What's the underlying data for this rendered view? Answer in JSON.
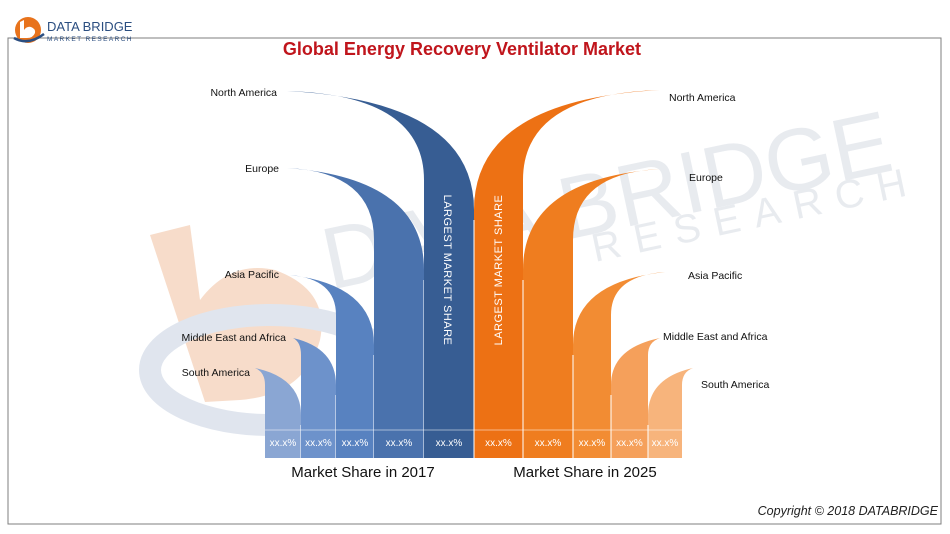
{
  "header": {
    "logo_name": "DATA BRIDGE",
    "logo_sub": "MARKET RESEARCH",
    "title": "Global Energy Recovery Ventilator Market"
  },
  "watermark": {
    "line1": "DATA BRIDGE",
    "line2": "RESEARCH"
  },
  "footer": {
    "copyright": "Copyright © 2018 DATABRIDGE"
  },
  "colors": {
    "left_series": [
      "#8aa6d3",
      "#6d92cb",
      "#5882c0",
      "#4a72ad",
      "#375d93"
    ],
    "right_series": [
      "#ed7114",
      "#ef7d1f",
      "#f28c33",
      "#f5a05b",
      "#f7b47c"
    ],
    "title": "#c0151c",
    "frame": "#7f7f7f"
  },
  "chart_data": {
    "type": "bar",
    "title": "Global Energy Recovery Ventilator Market",
    "left": {
      "axis_label": "Market Share in 2017",
      "highlight_label": "LARGEST MARKET SHARE",
      "regions": [
        {
          "name": "South America",
          "value_label": "xx.x%"
        },
        {
          "name": "Middle East and Africa",
          "value_label": "xx.x%"
        },
        {
          "name": "Asia Pacific",
          "value_label": "xx.x%"
        },
        {
          "name": "Europe",
          "value_label": "xx.x%"
        },
        {
          "name": "North America",
          "value_label": "xx.x%"
        }
      ]
    },
    "right": {
      "axis_label": "Market Share in 2025",
      "highlight_label": "LARGEST MARKET SHARE",
      "regions": [
        {
          "name": "North America",
          "value_label": "xx.x%"
        },
        {
          "name": "Europe",
          "value_label": "xx.x%"
        },
        {
          "name": "Asia Pacific",
          "value_label": "xx.x%"
        },
        {
          "name": "Middle East and Africa",
          "value_label": "xx.x%"
        },
        {
          "name": "South America",
          "value_label": "xx.x%"
        }
      ]
    }
  }
}
